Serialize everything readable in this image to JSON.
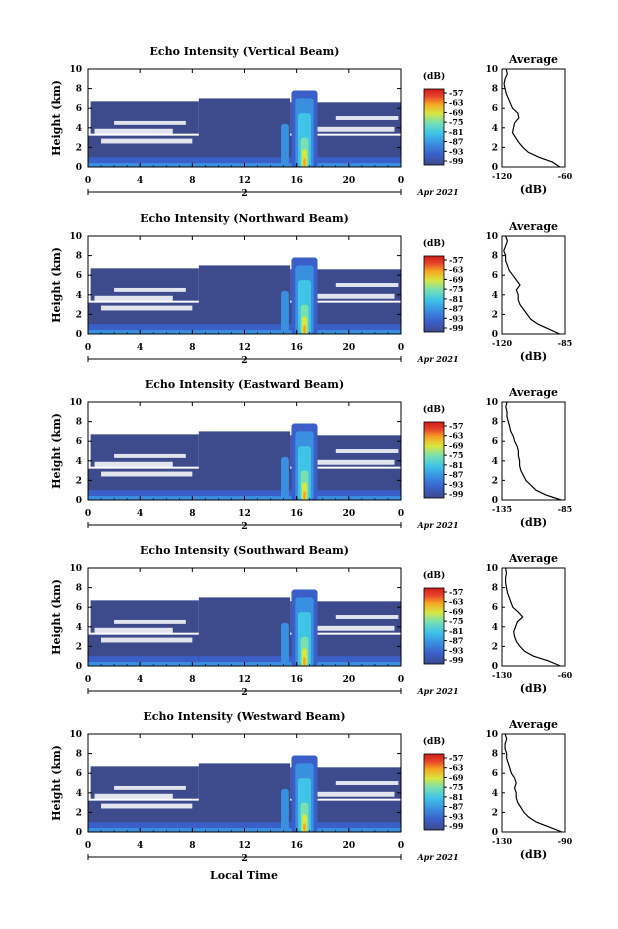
{
  "panel_titles": [
    "Echo Intensity (Vertical Beam)",
    "Echo Intensity (Northward Beam)",
    "Echo Intensity (Eastward Beam)",
    "Echo Intensity (Southward Beam)",
    "Echo Intensity (Westward Beam)"
  ],
  "average_title": "Average",
  "ylabel": "Height (km)",
  "xlabel": "Local Time",
  "colorbar_unit": "(dB)",
  "avg_xlabel": "(dB)",
  "date_marker": "2",
  "date_label": "Apr 2021",
  "x_ticks": [
    "0",
    "4",
    "8",
    "12",
    "16",
    "20",
    "0"
  ],
  "y_ticks": [
    "0",
    "2",
    "4",
    "6",
    "8",
    "10"
  ],
  "colorbar_ticks": [
    "-57",
    "-63",
    "-69",
    "-75",
    "-81",
    "-87",
    "-93",
    "-99"
  ],
  "avg_x_ticks": [
    [
      "-120",
      "-60"
    ],
    [
      "-120",
      "-85"
    ],
    [
      "-135",
      "-85"
    ],
    [
      "-130",
      "-60"
    ],
    [
      "-130",
      "-90"
    ]
  ],
  "colors": {
    "background_echo": "#3d4a8c",
    "colorbar": [
      "#3d4a8c",
      "#3a5fc9",
      "#3a8fe0",
      "#3fc4e8",
      "#7be0b0",
      "#d8e640",
      "#f5a623",
      "#e8452a",
      "#d01c1c"
    ]
  },
  "chart_data": [
    {
      "type": "heatmap",
      "title": "Echo Intensity (Vertical Beam)",
      "xlabel": "",
      "ylabel": "Height (km)",
      "x_range_hours": [
        0,
        24
      ],
      "ylim": [
        0,
        10
      ],
      "colorbar_range_db": [
        -99,
        -57
      ],
      "average_profile": {
        "xlim_db": [
          -120,
          -60
        ],
        "height_km": [
          0,
          0.5,
          1,
          1.5,
          2,
          2.5,
          3,
          3.5,
          4,
          4.5,
          5,
          5.5,
          6,
          6.5,
          7,
          7.5,
          8,
          8.5,
          9,
          9.5,
          10
        ],
        "db": [
          -65,
          -72,
          -85,
          -95,
          -100,
          -104,
          -107,
          -110,
          -109,
          -108,
          -104,
          -105,
          -110,
          -112,
          -114,
          -116,
          -117,
          -118,
          -117,
          -115,
          -116
        ]
      }
    },
    {
      "type": "heatmap",
      "title": "Echo Intensity (Northward Beam)",
      "xlabel": "",
      "ylabel": "Height (km)",
      "x_range_hours": [
        0,
        24
      ],
      "ylim": [
        0,
        10
      ],
      "colorbar_range_db": [
        -99,
        -57
      ],
      "average_profile": {
        "xlim_db": [
          -120,
          -85
        ],
        "height_km": [
          0,
          0.5,
          1,
          1.5,
          2,
          2.5,
          3,
          3.5,
          4,
          4.5,
          5,
          5.5,
          6,
          6.5,
          7,
          7.5,
          8,
          8.5,
          9,
          9.5,
          10
        ],
        "db": [
          -88,
          -94,
          -100,
          -104,
          -106,
          -108,
          -110,
          -111,
          -111,
          -112,
          -110,
          -112,
          -114,
          -116,
          -117,
          -118,
          -118,
          -119,
          -118,
          -117,
          -118
        ]
      }
    },
    {
      "type": "heatmap",
      "title": "Echo Intensity (Eastward Beam)",
      "xlabel": "",
      "ylabel": "Height (km)",
      "x_range_hours": [
        0,
        24
      ],
      "ylim": [
        0,
        10
      ],
      "colorbar_range_db": [
        -99,
        -57
      ],
      "average_profile": {
        "xlim_db": [
          -135,
          -85
        ],
        "height_km": [
          0,
          0.5,
          1,
          1.5,
          2,
          2.5,
          3,
          3.5,
          4,
          4.5,
          5,
          5.5,
          6,
          6.5,
          7,
          7.5,
          8,
          8.5,
          9,
          9.5,
          10
        ],
        "db": [
          -88,
          -100,
          -108,
          -112,
          -116,
          -118,
          -120,
          -121,
          -121,
          -122,
          -122,
          -123,
          -125,
          -126,
          -128,
          -129,
          -130,
          -131,
          -131,
          -132,
          -131
        ]
      }
    },
    {
      "type": "heatmap",
      "title": "Echo Intensity (Southward Beam)",
      "xlabel": "",
      "ylabel": "Height (km)",
      "x_range_hours": [
        0,
        24
      ],
      "ylim": [
        0,
        10
      ],
      "colorbar_range_db": [
        -99,
        -57
      ],
      "average_profile": {
        "xlim_db": [
          -130,
          -60
        ],
        "height_km": [
          0,
          0.5,
          1,
          1.5,
          2,
          2.5,
          3,
          3.5,
          4,
          4.5,
          5,
          5.5,
          6,
          6.5,
          7,
          7.5,
          8,
          8.5,
          9,
          9.5,
          10
        ],
        "db": [
          -65,
          -78,
          -95,
          -105,
          -110,
          -114,
          -116,
          -117,
          -115,
          -113,
          -107,
          -112,
          -118,
          -120,
          -122,
          -124,
          -125,
          -126,
          -126,
          -125,
          -126
        ]
      }
    },
    {
      "type": "heatmap",
      "title": "Echo Intensity (Westward Beam)",
      "xlabel": "Local Time",
      "ylabel": "Height (km)",
      "x_range_hours": [
        0,
        24
      ],
      "ylim": [
        0,
        10
      ],
      "colorbar_range_db": [
        -99,
        -57
      ],
      "average_profile": {
        "xlim_db": [
          -130,
          -90
        ],
        "height_km": [
          0,
          0.5,
          1,
          1.5,
          2,
          2.5,
          3,
          3.5,
          4,
          4.5,
          5,
          5.5,
          6,
          6.5,
          7,
          7.5,
          8,
          8.5,
          9,
          9.5,
          10
        ],
        "db": [
          -92,
          -100,
          -108,
          -113,
          -116,
          -118,
          -120,
          -121,
          -121,
          -122,
          -121,
          -122,
          -124,
          -125,
          -126,
          -127,
          -127,
          -128,
          -128,
          -127,
          -128
        ]
      }
    }
  ]
}
